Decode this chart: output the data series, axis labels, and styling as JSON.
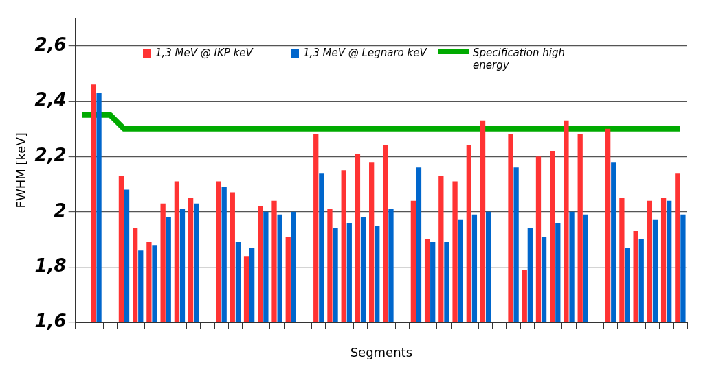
{
  "chart_data": {
    "type": "bar",
    "xlabel": "Segments",
    "ylabel": "FWHM [keV]",
    "categories": [
      null,
      null,
      null,
      null,
      null,
      null,
      null,
      null,
      null,
      null,
      null,
      null,
      null,
      null,
      null,
      null,
      null,
      null,
      null,
      null,
      null,
      null,
      null,
      null,
      null,
      null,
      null,
      null,
      null,
      null,
      null,
      null,
      null,
      null,
      null,
      null,
      null,
      null,
      null,
      null,
      null,
      null,
      null,
      null
    ],
    "series": [
      {
        "name": "1,3 MeV @ IKP keV",
        "color": "#ff3333",
        "values": [
          null,
          2.46,
          null,
          2.13,
          1.94,
          1.89,
          2.03,
          2.11,
          2.05,
          null,
          2.11,
          2.07,
          1.84,
          2.02,
          2.04,
          1.91,
          null,
          2.28,
          2.01,
          2.15,
          2.21,
          2.18,
          2.24,
          null,
          2.04,
          1.9,
          2.13,
          2.11,
          2.24,
          2.33,
          null,
          2.28,
          1.79,
          2.2,
          2.22,
          2.33,
          2.28,
          null,
          2.3,
          2.05,
          1.93,
          2.04,
          2.05,
          2.14
        ]
      },
      {
        "name": "1,3 MeV @ Legnaro keV",
        "color": "#0066cc",
        "values": [
          null,
          2.43,
          null,
          2.08,
          1.86,
          1.88,
          1.98,
          2.01,
          2.03,
          null,
          2.09,
          1.89,
          1.87,
          2.0,
          1.99,
          2.0,
          null,
          2.14,
          1.94,
          1.96,
          1.98,
          1.95,
          2.01,
          null,
          2.16,
          1.89,
          1.89,
          1.97,
          1.99,
          2.0,
          null,
          2.16,
          1.94,
          1.91,
          1.96,
          2.0,
          1.99,
          null,
          2.18,
          1.87,
          1.9,
          1.97,
          2.04,
          1.99
        ]
      },
      {
        "name": "Specification high energy",
        "type": "line",
        "color": "#00aa00",
        "values": [
          2.35,
          2.35,
          2.35,
          2.3,
          2.3,
          2.3,
          2.3,
          2.3,
          2.3,
          2.3,
          2.3,
          2.3,
          2.3,
          2.3,
          2.3,
          2.3,
          2.3,
          2.3,
          2.3,
          2.3,
          2.3,
          2.3,
          2.3,
          2.3,
          2.3,
          2.3,
          2.3,
          2.3,
          2.3,
          2.3,
          2.3,
          2.3,
          2.3,
          2.3,
          2.3,
          2.3,
          2.3,
          2.3,
          2.3,
          2.3,
          2.3,
          2.3,
          2.3,
          2.3
        ]
      }
    ],
    "ylim": [
      1.6,
      2.7
    ],
    "yticks": [
      {
        "value": 1.6,
        "label": "1,6"
      },
      {
        "value": 1.8,
        "label": "1,8"
      },
      2,
      {
        "value": 2.2,
        "label": "2,2"
      },
      {
        "value": 2.4,
        "label": "2,4"
      },
      {
        "value": 2.6,
        "label": "2,6"
      }
    ],
    "grid": "y",
    "legend": "top",
    "marker": "none"
  }
}
